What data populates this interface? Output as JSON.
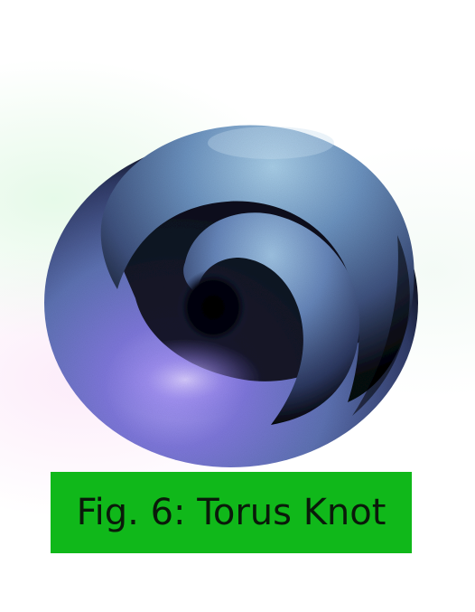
{
  "figure": {
    "caption": "Fig. 6: Torus Knot",
    "caption_bg": "#10b81a",
    "caption_color": "#0a1a0a",
    "subject": "torus-knot",
    "colors": {
      "highlight": "#a8cce8",
      "mid": "#5d7fb0",
      "violet": "#8a7ce0",
      "shadow": "#000000"
    }
  }
}
